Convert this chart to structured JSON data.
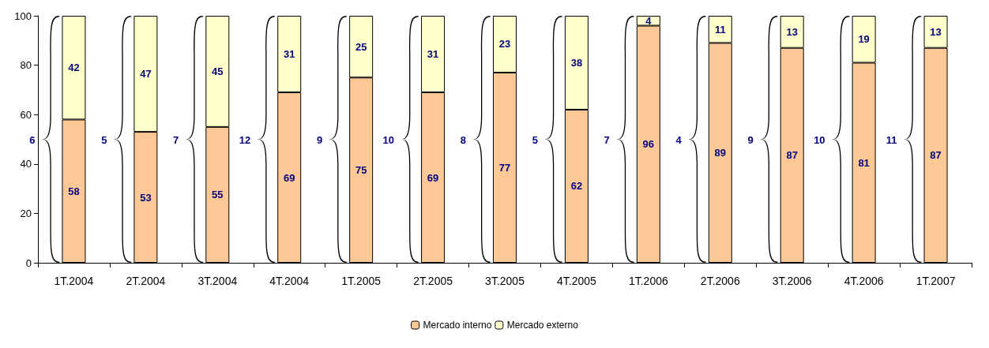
{
  "chart_data": {
    "type": "bar",
    "stacked": true,
    "categories": [
      "1T.2004",
      "2T.2004",
      "3T.2004",
      "4T.2004",
      "1T.2005",
      "2T.2005",
      "3T.2005",
      "4T.2005",
      "1T.2006",
      "2T.2006",
      "3T.2006",
      "4T.2006",
      "1T.2007"
    ],
    "series": [
      {
        "name": "Mercado interno",
        "color": "#fcc996",
        "values": [
          58,
          53,
          55,
          69,
          75,
          69,
          77,
          62,
          96,
          89,
          87,
          81,
          87
        ]
      },
      {
        "name": "Mercado externo",
        "color": "#ffffcc",
        "values": [
          42,
          47,
          45,
          31,
          25,
          31,
          23,
          38,
          4,
          11,
          13,
          19,
          13
        ]
      }
    ],
    "ylim": [
      0,
      100
    ],
    "yticks": [
      0,
      20,
      40,
      60,
      80,
      100
    ],
    "grid": false,
    "legend": "bottom",
    "data_labels": true,
    "annotations": [
      "6",
      "5",
      "7",
      "12",
      "9",
      "10",
      "8",
      "5",
      "7",
      "4",
      "9",
      "10",
      "11"
    ]
  }
}
